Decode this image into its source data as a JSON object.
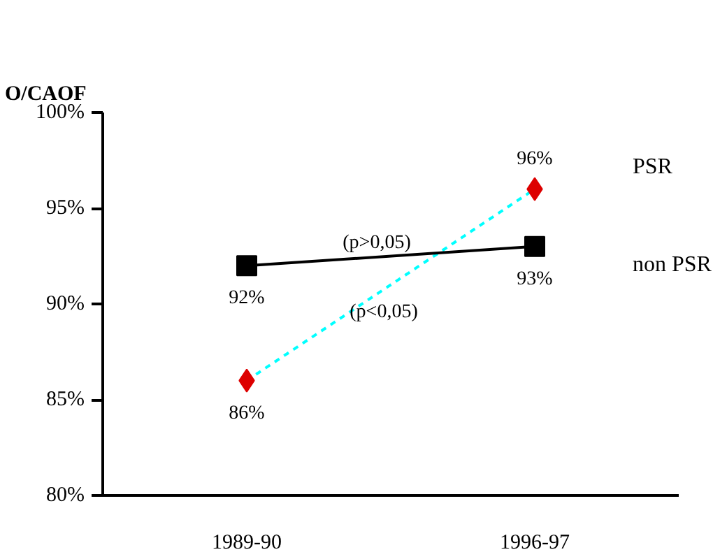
{
  "chart_data": {
    "type": "line",
    "title": "O/CAOF",
    "categories": [
      "1989-90",
      "1996-97"
    ],
    "series": [
      {
        "name": "PSR",
        "color": "#00ffff",
        "colors": [
          "#dd0000",
          "#dd0000"
        ],
        "marker": "diamond",
        "line_style": "dashed",
        "values": [
          86,
          96
        ],
        "value_labels": [
          "86%",
          "96%"
        ]
      },
      {
        "name": "non PSR",
        "color": "#000000",
        "colors": [
          "#000000",
          "#000000"
        ],
        "marker": "square",
        "line_style": "solid",
        "values": [
          92,
          93
        ],
        "value_labels": [
          "92%",
          "93%"
        ]
      }
    ],
    "ylim": [
      80,
      100
    ],
    "yticks": [
      {
        "value": 80,
        "label": "80%"
      },
      {
        "value": 85,
        "label": "85%"
      },
      {
        "value": 90,
        "label": "90%"
      },
      {
        "value": 95,
        "label": "95%"
      },
      {
        "value": 100,
        "label": "100%"
      }
    ],
    "annotations": [
      "(p<0,05)",
      "(p>0,05)"
    ],
    "grid": false
  }
}
